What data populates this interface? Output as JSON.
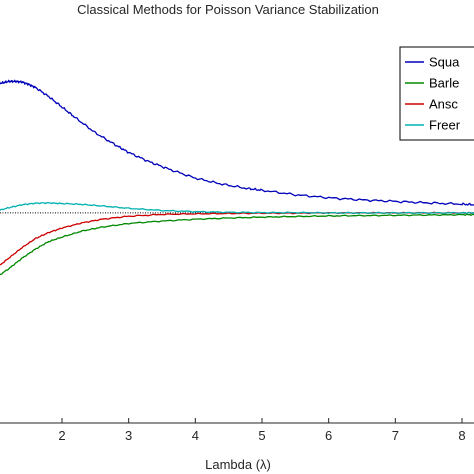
{
  "chart_data": {
    "type": "line",
    "title": "Classical Methods for Poisson Variance Stabilization",
    "xlabel": "Lambda (λ)",
    "ylabel": "",
    "xlim": [
      0,
      8.2
    ],
    "ylim": [
      0,
      1.3
    ],
    "x_ticks": [
      2,
      3,
      4,
      5,
      6,
      7,
      8
    ],
    "y_ticks": [],
    "grid": false,
    "legend_position": "top-right",
    "reference_line": {
      "y": 0.695,
      "style": "dotted",
      "color": "#000000"
    },
    "series": [
      {
        "name": "Squa",
        "color": "#0000bb",
        "x": [
          0.9,
          1.0,
          1.1,
          1.2,
          1.3,
          1.4,
          1.5,
          1.6,
          1.8,
          2.0,
          2.2,
          2.5,
          2.8,
          3.0,
          3.3,
          3.6,
          4.0,
          4.4,
          4.8,
          5.0,
          5.5,
          6.0,
          6.5,
          7.0,
          7.5,
          8.0,
          8.2
        ],
        "y": [
          1.11,
          1.12,
          1.125,
          1.13,
          1.13,
          1.128,
          1.12,
          1.11,
          1.08,
          1.045,
          1.01,
          0.96,
          0.92,
          0.895,
          0.865,
          0.84,
          0.81,
          0.79,
          0.775,
          0.77,
          0.755,
          0.745,
          0.738,
          0.733,
          0.728,
          0.724,
          0.722
        ]
      },
      {
        "name": "Barle",
        "color": "#008800",
        "x": [
          0.9,
          1.0,
          1.2,
          1.4,
          1.6,
          1.8,
          2.0,
          2.3,
          2.6,
          3.0,
          3.5,
          4.0,
          4.5,
          5.0,
          5.5,
          6.0,
          6.5,
          7.0,
          7.5,
          8.0,
          8.2
        ],
        "y": [
          0.47,
          0.48,
          0.51,
          0.545,
          0.575,
          0.6,
          0.615,
          0.635,
          0.648,
          0.66,
          0.668,
          0.674,
          0.678,
          0.681,
          0.683,
          0.685,
          0.686,
          0.687,
          0.688,
          0.689,
          0.689
        ]
      },
      {
        "name": "Ansc",
        "color": "#cc0000",
        "x": [
          0.9,
          1.0,
          1.2,
          1.4,
          1.6,
          1.8,
          2.0,
          2.3,
          2.6,
          3.0,
          3.5,
          4.0,
          4.5,
          5.0,
          5.5,
          6.0,
          6.5,
          7.0,
          7.5,
          8.0,
          8.2
        ],
        "y": [
          0.5,
          0.51,
          0.545,
          0.58,
          0.61,
          0.63,
          0.645,
          0.662,
          0.674,
          0.684,
          0.69,
          0.692,
          0.693,
          0.694,
          0.694,
          0.695,
          0.695,
          0.695,
          0.695,
          0.695,
          0.695
        ]
      },
      {
        "name": "Freer",
        "color": "#00b0b0",
        "x": [
          0.9,
          1.0,
          1.2,
          1.4,
          1.6,
          1.8,
          2.0,
          2.3,
          2.6,
          3.0,
          3.5,
          4.0,
          4.5,
          5.0,
          5.5,
          6.0,
          6.5,
          7.0,
          7.5,
          8.0,
          8.2
        ],
        "y": [
          0.695,
          0.7,
          0.712,
          0.722,
          0.727,
          0.728,
          0.726,
          0.723,
          0.718,
          0.71,
          0.703,
          0.699,
          0.697,
          0.696,
          0.696,
          0.695,
          0.695,
          0.695,
          0.695,
          0.695,
          0.695
        ]
      }
    ]
  }
}
